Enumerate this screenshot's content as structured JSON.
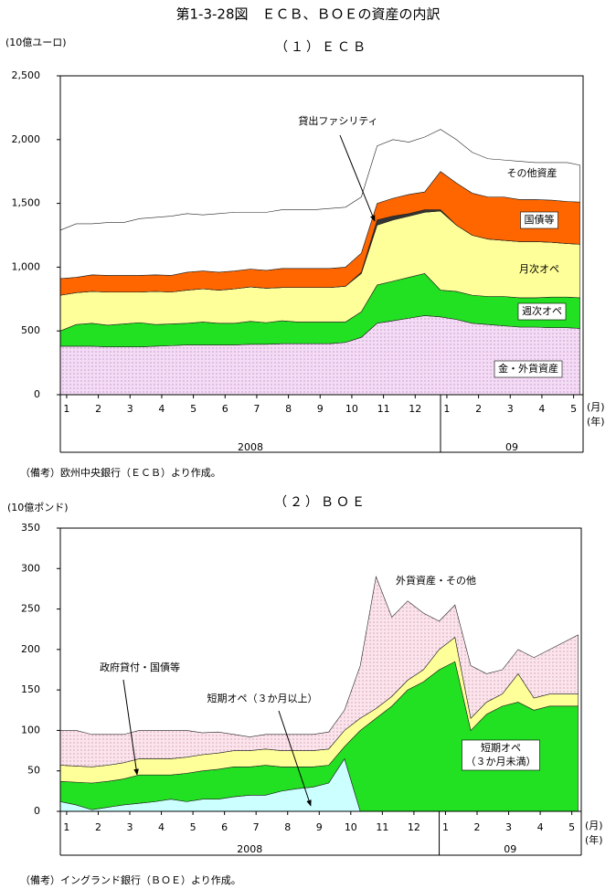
{
  "title": "第1-3-28図　ＥＣＢ、ＢＯＥの資産の内訳",
  "chart_data": [
    {
      "type": "stacked_area",
      "title": "（１）ＥＣＢ",
      "y_label": "(10億ユーロ)",
      "x_unit_month": "(月)",
      "x_unit_year": "(年)",
      "note": "（備考）欧州中央銀行（ＥＣＢ）より作成。",
      "annotation": "貸出ファシリティ",
      "x": [
        -0.2,
        0.3,
        0.8,
        1.3,
        1.8,
        2.3,
        2.8,
        3.3,
        3.8,
        4.3,
        4.8,
        5.3,
        5.8,
        6.3,
        6.8,
        7.3,
        7.8,
        8.3,
        8.8,
        9.3,
        9.8,
        10.3,
        10.8,
        11.3,
        11.8,
        12.3,
        12.8,
        13.3,
        13.8,
        14.3,
        14.8,
        15.3,
        15.8,
        16.2
      ],
      "xlim": [
        -0.2,
        16.3
      ],
      "xticks": [
        {
          "value": 0,
          "label": "1"
        },
        {
          "value": 1,
          "label": "2"
        },
        {
          "value": 2,
          "label": "3"
        },
        {
          "value": 3,
          "label": "4"
        },
        {
          "value": 4,
          "label": "5"
        },
        {
          "value": 5,
          "label": "6"
        },
        {
          "value": 6,
          "label": "7"
        },
        {
          "value": 7,
          "label": "8"
        },
        {
          "value": 8,
          "label": "9"
        },
        {
          "value": 9,
          "label": "10"
        },
        {
          "value": 10,
          "label": "11"
        },
        {
          "value": 11,
          "label": "12"
        },
        {
          "value": 12,
          "label": "1"
        },
        {
          "value": 13,
          "label": "2"
        },
        {
          "value": 14,
          "label": "3"
        },
        {
          "value": 15,
          "label": "4"
        },
        {
          "value": 16,
          "label": "5"
        }
      ],
      "year_groups": [
        {
          "label": "2008",
          "range": [
            -0.2,
            11.8
          ]
        },
        {
          "label": "09",
          "range": [
            11.8,
            16.3
          ]
        }
      ],
      "ylim": [
        0,
        2500
      ],
      "yticks": [
        0,
        500,
        {
          "value": 1000,
          "label": "1,000"
        },
        {
          "value": 1500,
          "label": "1,500"
        },
        {
          "value": 2000,
          "label": "2,000"
        },
        {
          "value": 2500,
          "label": "2,500"
        }
      ],
      "series": [
        {
          "name": "金・外貨資産",
          "color": "#f4dcf4",
          "pattern": "dots",
          "dot_color": "#b070c0",
          "values": [
            380,
            380,
            380,
            375,
            375,
            375,
            380,
            385,
            390,
            390,
            390,
            390,
            395,
            395,
            400,
            400,
            400,
            400,
            410,
            450,
            560,
            580,
            600,
            620,
            610,
            590,
            560,
            550,
            540,
            530,
            530,
            525,
            525,
            520
          ]
        },
        {
          "name": "週次オペ",
          "color": "#22e022",
          "values": [
            120,
            170,
            180,
            170,
            180,
            190,
            170,
            170,
            170,
            180,
            170,
            170,
            180,
            170,
            180,
            170,
            170,
            170,
            160,
            200,
            300,
            310,
            320,
            330,
            210,
            220,
            220,
            220,
            230,
            230,
            230,
            240,
            240,
            240
          ]
        },
        {
          "name": "月次オペ",
          "color": "#ffff99",
          "values": [
            280,
            250,
            250,
            260,
            250,
            240,
            260,
            250,
            260,
            260,
            260,
            270,
            270,
            270,
            260,
            270,
            270,
            270,
            280,
            300,
            470,
            480,
            480,
            480,
            620,
            520,
            470,
            450,
            440,
            440,
            440,
            430,
            420,
            420
          ]
        },
        {
          "name": "貸出ファシリティ",
          "color": "#333333",
          "values": [
            0,
            0,
            0,
            0,
            0,
            0,
            0,
            0,
            0,
            0,
            0,
            0,
            0,
            0,
            0,
            0,
            0,
            0,
            0,
            10,
            40,
            30,
            20,
            20,
            10,
            0,
            0,
            0,
            0,
            0,
            0,
            0,
            0,
            0
          ]
        },
        {
          "name": "国債等",
          "color": "#ff6600",
          "values": [
            130,
            120,
            130,
            130,
            130,
            130,
            130,
            130,
            140,
            140,
            140,
            140,
            140,
            140,
            150,
            150,
            150,
            150,
            150,
            150,
            130,
            140,
            150,
            140,
            300,
            330,
            330,
            330,
            340,
            330,
            330,
            330,
            330,
            330
          ]
        },
        {
          "name": "その他資産",
          "color": "#ffffff",
          "values": [
            380,
            420,
            400,
            415,
            415,
            445,
            450,
            465,
            460,
            440,
            460,
            460,
            445,
            455,
            460,
            460,
            460,
            470,
            470,
            440,
            450,
            460,
            410,
            430,
            330,
            340,
            320,
            300,
            290,
            300,
            290,
            295,
            305,
            290
          ]
        }
      ]
    },
    {
      "type": "stacked_area",
      "title": "（２）ＢＯＥ",
      "y_label": "(10億ポンド)",
      "x_unit_month": "(月)",
      "x_unit_year": "(年)",
      "note": "（備考）イングランド銀行（ＢＯＥ）より作成。",
      "x": [
        -0.2,
        0.3,
        0.8,
        1.3,
        1.8,
        2.3,
        2.8,
        3.3,
        3.8,
        4.3,
        4.8,
        5.3,
        5.8,
        6.3,
        6.8,
        7.3,
        7.8,
        8.3,
        8.8,
        9.3,
        9.8,
        10.3,
        10.8,
        11.3,
        11.8,
        12.3,
        12.8,
        13.3,
        13.8,
        14.3,
        14.8,
        15.3,
        15.8,
        16.2
      ],
      "xlim": [
        -0.2,
        16.3
      ],
      "xticks": [
        {
          "value": 0,
          "label": "1"
        },
        {
          "value": 1,
          "label": "2"
        },
        {
          "value": 2,
          "label": "3"
        },
        {
          "value": 3,
          "label": "4"
        },
        {
          "value": 4,
          "label": "5"
        },
        {
          "value": 5,
          "label": "6"
        },
        {
          "value": 6,
          "label": "7"
        },
        {
          "value": 7,
          "label": "8"
        },
        {
          "value": 8,
          "label": "9"
        },
        {
          "value": 9,
          "label": "10"
        },
        {
          "value": 10,
          "label": "11"
        },
        {
          "value": 11,
          "label": "12"
        },
        {
          "value": 12,
          "label": "1"
        },
        {
          "value": 13,
          "label": "2"
        },
        {
          "value": 14,
          "label": "3"
        },
        {
          "value": 15,
          "label": "4"
        },
        {
          "value": 16,
          "label": "5"
        }
      ],
      "year_groups": [
        {
          "label": "2008",
          "range": [
            -0.2,
            11.8
          ]
        },
        {
          "label": "09",
          "range": [
            11.8,
            16.3
          ]
        }
      ],
      "ylim": [
        0,
        350
      ],
      "yticks": [
        0,
        50,
        100,
        150,
        200,
        250,
        300,
        350
      ],
      "series": [
        {
          "name": "短期オペ（３か月以上）",
          "color": "#ccffff",
          "values": [
            12,
            8,
            2,
            5,
            8,
            10,
            12,
            15,
            12,
            15,
            15,
            18,
            20,
            20,
            25,
            28,
            30,
            35,
            65,
            0,
            0,
            0,
            0,
            0,
            0,
            0,
            0,
            0,
            0,
            0,
            0,
            0,
            0,
            0
          ]
        },
        {
          "name": "短期オペ\n（３か月未満）",
          "color": "#22e022",
          "values": [
            25,
            28,
            33,
            32,
            32,
            35,
            33,
            30,
            35,
            35,
            37,
            37,
            35,
            37,
            30,
            27,
            25,
            22,
            15,
            100,
            115,
            130,
            150,
            160,
            175,
            185,
            100,
            120,
            130,
            135,
            125,
            130,
            130,
            130
          ]
        },
        {
          "name": "政府貸付・国債等",
          "color": "#ffff99",
          "values": [
            20,
            20,
            20,
            20,
            20,
            20,
            20,
            20,
            20,
            20,
            20,
            20,
            20,
            20,
            20,
            20,
            20,
            20,
            20,
            15,
            12,
            12,
            12,
            15,
            25,
            30,
            15,
            15,
            15,
            35,
            15,
            15,
            15,
            15
          ]
        },
        {
          "name": "外貨資産・その他",
          "color": "#fbe4ec",
          "pattern": "dots",
          "dot_color": "#c08090",
          "values": [
            43,
            44,
            40,
            38,
            35,
            35,
            35,
            35,
            33,
            27,
            26,
            20,
            17,
            18,
            20,
            20,
            20,
            21,
            25,
            65,
            163,
            98,
            98,
            70,
            35,
            40,
            65,
            35,
            30,
            30,
            50,
            55,
            65,
            73
          ]
        }
      ]
    }
  ]
}
